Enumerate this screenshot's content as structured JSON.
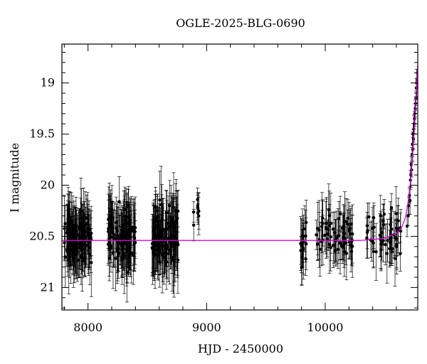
{
  "chart_data": {
    "type": "scatter",
    "title": "OGLE-2025-BLG-0690",
    "xlabel": "HJD - 2450000",
    "ylabel": "I magnitude",
    "xlim": [
      7780,
      10780
    ],
    "ylim": [
      21.22,
      18.62
    ],
    "y_inverted": true,
    "grid": false,
    "x_ticks": [
      8000,
      9000,
      10000
    ],
    "x_tick_labels": [
      "8000",
      "9000",
      "10000"
    ],
    "y_ticks": [
      19,
      19.5,
      20,
      20.5,
      21
    ],
    "y_tick_labels": [
      "19",
      "19.5",
      "20",
      "20.5",
      "21"
    ],
    "baseline_magnitude": 20.54,
    "point_color": "#000000",
    "model_color": "#e000e0",
    "observation_seasons": [
      {
        "x_start": 7800,
        "x_end": 8030,
        "mag_mean": 20.52,
        "mag_scatter": 0.17,
        "err_typical": 0.24,
        "points": 130
      },
      {
        "x_start": 8170,
        "x_end": 8400,
        "mag_mean": 20.5,
        "mag_scatter": 0.17,
        "err_typical": 0.26,
        "points": 120
      },
      {
        "x_start": 8540,
        "x_end": 8760,
        "mag_mean": 20.5,
        "mag_scatter": 0.19,
        "err_typical": 0.27,
        "points": 120
      },
      {
        "x_start": 8890,
        "x_end": 8935,
        "mag_mean": 20.22,
        "mag_scatter": 0.1,
        "err_typical": 0.15,
        "points": 9
      },
      {
        "x_start": 9790,
        "x_end": 9840,
        "mag_mean": 20.58,
        "mag_scatter": 0.15,
        "err_typical": 0.22,
        "points": 18
      },
      {
        "x_start": 9920,
        "x_end": 10230,
        "mag_mean": 20.5,
        "mag_scatter": 0.15,
        "err_typical": 0.22,
        "points": 70
      },
      {
        "x_start": 10350,
        "x_end": 10640,
        "mag_mean": 20.48,
        "mag_scatter": 0.16,
        "err_typical": 0.22,
        "points": 55
      }
    ],
    "rise_points": [
      {
        "x": 10690,
        "y": 20.4
      },
      {
        "x": 10700,
        "y": 20.3
      },
      {
        "x": 10705,
        "y": 20.2
      },
      {
        "x": 10710,
        "y": 20.1
      },
      {
        "x": 10715,
        "y": 20.15
      },
      {
        "x": 10718,
        "y": 19.95
      },
      {
        "x": 10722,
        "y": 19.9
      },
      {
        "x": 10725,
        "y": 19.8
      },
      {
        "x": 10728,
        "y": 19.85
      },
      {
        "x": 10732,
        "y": 19.7
      },
      {
        "x": 10735,
        "y": 19.6
      },
      {
        "x": 10738,
        "y": 19.65
      },
      {
        "x": 10741,
        "y": 19.5
      },
      {
        "x": 10744,
        "y": 19.55
      },
      {
        "x": 10747,
        "y": 19.45
      },
      {
        "x": 10750,
        "y": 19.4
      },
      {
        "x": 10753,
        "y": 19.35
      },
      {
        "x": 10756,
        "y": 19.3
      },
      {
        "x": 10759,
        "y": 19.25
      },
      {
        "x": 10762,
        "y": 19.2
      },
      {
        "x": 10765,
        "y": 19.15
      },
      {
        "x": 10768,
        "y": 19.05
      },
      {
        "x": 10771,
        "y": 19.0
      },
      {
        "x": 10774,
        "y": 18.97
      }
    ],
    "model_curve": [
      {
        "x": 7780,
        "y": 20.54
      },
      {
        "x": 10300,
        "y": 20.54
      },
      {
        "x": 10500,
        "y": 20.52
      },
      {
        "x": 10600,
        "y": 20.47
      },
      {
        "x": 10650,
        "y": 20.4
      },
      {
        "x": 10680,
        "y": 20.3
      },
      {
        "x": 10700,
        "y": 20.15
      },
      {
        "x": 10720,
        "y": 19.95
      },
      {
        "x": 10740,
        "y": 19.65
      },
      {
        "x": 10755,
        "y": 19.4
      },
      {
        "x": 10765,
        "y": 19.15
      },
      {
        "x": 10775,
        "y": 18.92
      },
      {
        "x": 10780,
        "y": 18.82
      }
    ]
  }
}
